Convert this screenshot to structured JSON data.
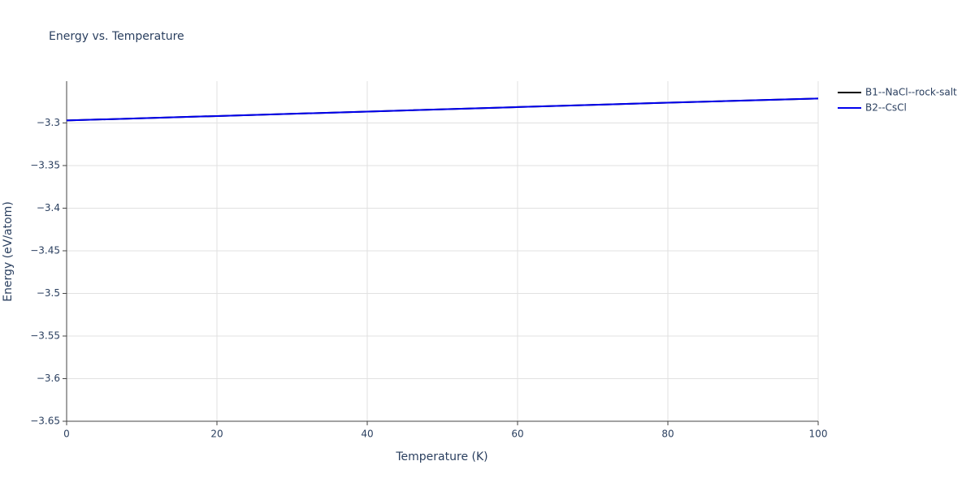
{
  "chart_data": {
    "type": "line",
    "title": "Energy vs. Temperature",
    "xlabel": "Temperature (K)",
    "ylabel": "Energy (eV/atom)",
    "x": [
      0,
      20,
      40,
      60,
      80,
      100
    ],
    "series": [
      {
        "name": "B1--NaCl--rock-salt",
        "color": "#000000",
        "values": [
          -3.2971,
          -3.2919,
          -3.2867,
          -3.2814,
          -3.2762,
          -3.2714
        ]
      },
      {
        "name": "B2--CsCl",
        "color": "#0000ee",
        "values": [
          -3.2971,
          -3.2919,
          -3.2867,
          -3.2814,
          -3.2762,
          -3.2714
        ]
      }
    ],
    "xlim": [
      0,
      100
    ],
    "xticks": [
      0,
      20,
      40,
      60,
      80,
      100
    ],
    "ylim": [
      -3.65,
      -3.251
    ],
    "yticks": [
      {
        "value": -3.3,
        "label": "−3.3"
      },
      {
        "value": -3.35,
        "label": "−3.35"
      },
      {
        "value": -3.4,
        "label": "−3.4"
      },
      {
        "value": -3.45,
        "label": "−3.45"
      },
      {
        "value": -3.5,
        "label": "−3.5"
      },
      {
        "value": -3.55,
        "label": "−3.55"
      },
      {
        "value": -3.6,
        "label": "−3.6"
      },
      {
        "value": -3.65,
        "label": "−3.65"
      }
    ],
    "grid": true,
    "legend": "right"
  }
}
